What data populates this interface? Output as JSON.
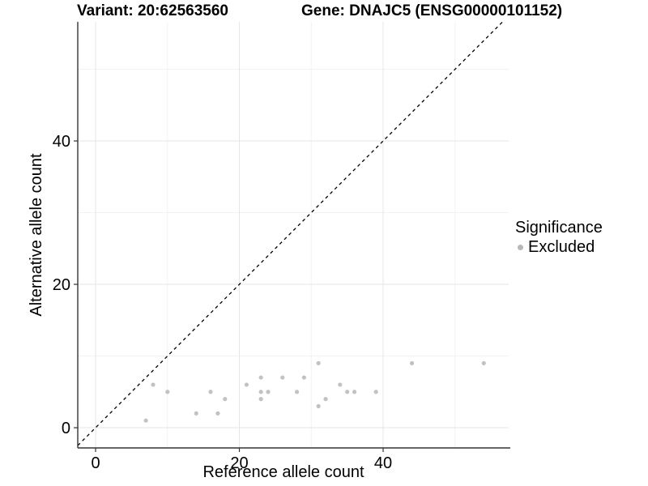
{
  "chart_data": {
    "type": "scatter",
    "title_left": "Variant: 20:62563560",
    "title_right": "Gene: DNAJC5 (ENSG00000101152)",
    "xlabel": "Reference allele count",
    "ylabel": "Alternative allele count",
    "xlim": [
      -2.48,
      57.46
    ],
    "ylim": [
      -2.82,
      56.61
    ],
    "xticks": [
      0,
      20,
      40
    ],
    "yticks": [
      0,
      20,
      40
    ],
    "xticks_minor": [
      10,
      30,
      50
    ],
    "yticks_minor": [
      10,
      30,
      50
    ],
    "grid": true,
    "legend": {
      "title": "Significance",
      "position": "right",
      "items": [
        {
          "label": "Excluded",
          "color": "#c2c2c2"
        }
      ]
    },
    "identity_line": {
      "equation": "y = x",
      "style": "dashed",
      "color": "#000000"
    },
    "series": [
      {
        "name": "Excluded",
        "color": "#c2c2c2",
        "points": [
          [
            7,
            1
          ],
          [
            8,
            6
          ],
          [
            10,
            5
          ],
          [
            14,
            2
          ],
          [
            16,
            5
          ],
          [
            17,
            2
          ],
          [
            18,
            4
          ],
          [
            21,
            6
          ],
          [
            23,
            4
          ],
          [
            23,
            5
          ],
          [
            23,
            7
          ],
          [
            24,
            5
          ],
          [
            26,
            7
          ],
          [
            28,
            5
          ],
          [
            29,
            7
          ],
          [
            31,
            3
          ],
          [
            31,
            9
          ],
          [
            32,
            4
          ],
          [
            34,
            6
          ],
          [
            35,
            5
          ],
          [
            36,
            5
          ],
          [
            39,
            5
          ],
          [
            44,
            9
          ],
          [
            54,
            9
          ]
        ]
      }
    ],
    "style": {
      "background": "#ffffff",
      "grid_major_color": "#e6e6e6",
      "grid_minor_color": "#f2f2f2",
      "axis_color": "#333333",
      "tick_label_color": "#000000",
      "point_radius": 2.6,
      "legend_dot_color": "#b8b8b8"
    }
  }
}
